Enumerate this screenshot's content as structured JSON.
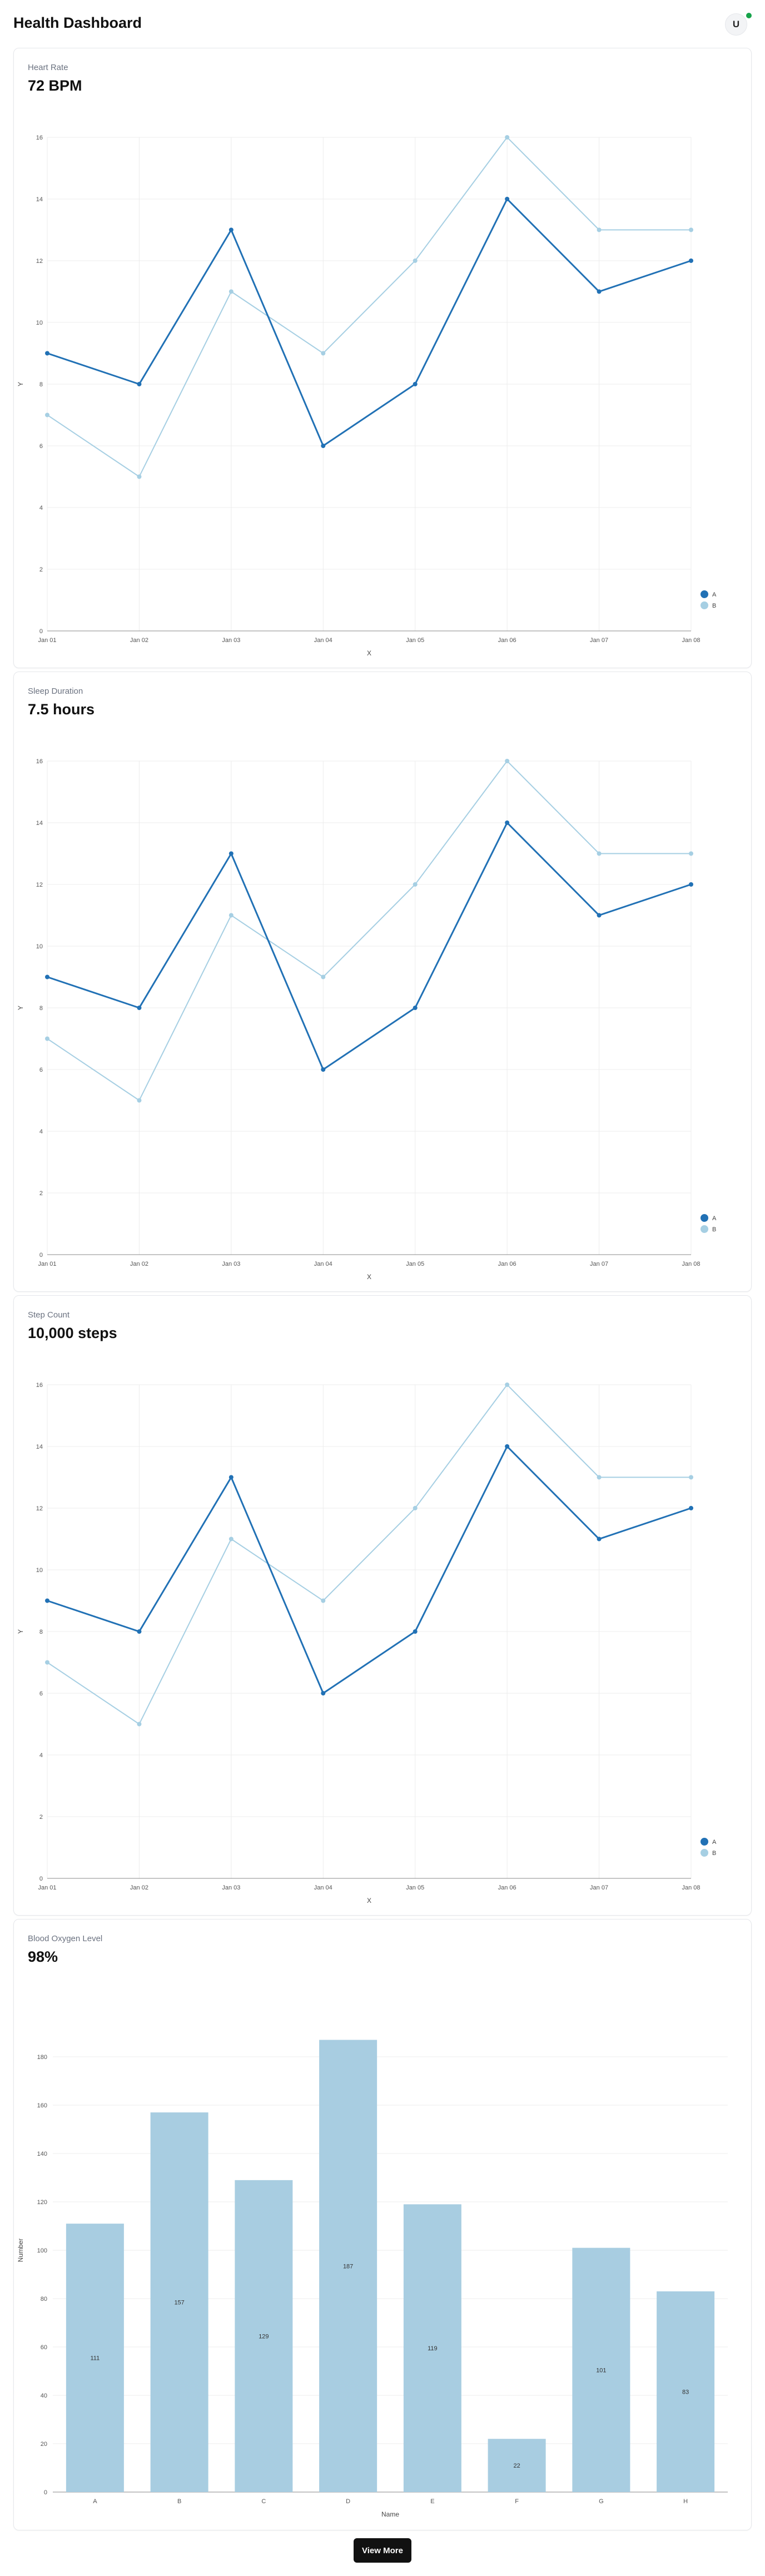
{
  "app": {
    "title": "Health Dashboard",
    "user_initial": "U"
  },
  "cards": [
    {
      "label": "Heart Rate",
      "value": "72 BPM"
    },
    {
      "label": "Sleep Duration",
      "value": "7.5 hours"
    },
    {
      "label": "Step Count",
      "value": "10,000 steps"
    },
    {
      "label": "Blood Oxygen Level",
      "value": "98%"
    }
  ],
  "colors": {
    "series_a": "#2171b5",
    "series_b": "#a6cfe3",
    "bar": "#a8cde1",
    "status": "#16a34a"
  },
  "chart_data": [
    {
      "type": "line",
      "x": [
        "Jan 01",
        "Jan 02",
        "Jan 03",
        "Jan 04",
        "Jan 05",
        "Jan 06",
        "Jan 07",
        "Jan 08"
      ],
      "series": [
        {
          "name": "A",
          "values": [
            9,
            8,
            13,
            6,
            8,
            14,
            11,
            12
          ]
        },
        {
          "name": "B",
          "values": [
            7,
            5,
            11,
            9,
            12,
            16,
            13,
            13
          ]
        }
      ],
      "xlabel": "X",
      "ylabel": "Y",
      "ylim": [
        0,
        16
      ],
      "yticks": [
        0,
        2,
        4,
        6,
        8,
        10,
        12,
        14,
        16
      ],
      "grid": true,
      "legend": "bottom-right"
    },
    {
      "type": "line",
      "x": [
        "Jan 01",
        "Jan 02",
        "Jan 03",
        "Jan 04",
        "Jan 05",
        "Jan 06",
        "Jan 07",
        "Jan 08"
      ],
      "series": [
        {
          "name": "A",
          "values": [
            9,
            8,
            13,
            6,
            8,
            14,
            11,
            12
          ]
        },
        {
          "name": "B",
          "values": [
            7,
            5,
            11,
            9,
            12,
            16,
            13,
            13
          ]
        }
      ],
      "xlabel": "X",
      "ylabel": "Y",
      "ylim": [
        0,
        16
      ],
      "yticks": [
        0,
        2,
        4,
        6,
        8,
        10,
        12,
        14,
        16
      ],
      "grid": true,
      "legend": "bottom-right"
    },
    {
      "type": "line",
      "x": [
        "Jan 01",
        "Jan 02",
        "Jan 03",
        "Jan 04",
        "Jan 05",
        "Jan 06",
        "Jan 07",
        "Jan 08"
      ],
      "series": [
        {
          "name": "A",
          "values": [
            9,
            8,
            13,
            6,
            8,
            14,
            11,
            12
          ]
        },
        {
          "name": "B",
          "values": [
            7,
            5,
            11,
            9,
            12,
            16,
            13,
            13
          ]
        }
      ],
      "xlabel": "X",
      "ylabel": "Y",
      "ylim": [
        0,
        16
      ],
      "yticks": [
        0,
        2,
        4,
        6,
        8,
        10,
        12,
        14,
        16
      ],
      "grid": true,
      "legend": "bottom-right"
    },
    {
      "type": "bar",
      "categories": [
        "A",
        "B",
        "C",
        "D",
        "E",
        "F",
        "G",
        "H"
      ],
      "values": [
        111,
        157,
        129,
        187,
        119,
        22,
        101,
        83
      ],
      "xlabel": "Name",
      "ylabel": "Number",
      "ylim": [
        0,
        200
      ],
      "yticks": [
        0,
        20,
        40,
        60,
        80,
        100,
        120,
        140,
        160,
        180
      ],
      "grid": true
    }
  ],
  "actions": {
    "view_more_label": "View More"
  }
}
